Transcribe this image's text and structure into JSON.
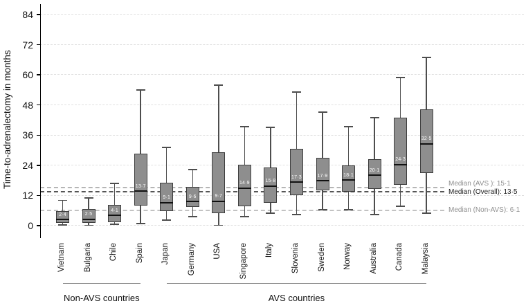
{
  "y_axis": {
    "title": "Time-to-adrenalectomy in months",
    "ticks": [
      0,
      12,
      24,
      36,
      48,
      60,
      72,
      84
    ],
    "range": [
      0,
      88
    ]
  },
  "groups": [
    {
      "label": "Non-AVS countries",
      "start_index": 0,
      "end_index": 3
    },
    {
      "label": "AVS countries",
      "start_index": 4,
      "end_index": 14
    }
  ],
  "reference_lines": [
    {
      "name": "median-avs",
      "value": 15.1,
      "label": "Median (AVS ): 15·1",
      "emphasis": false
    },
    {
      "name": "median-overall",
      "value": 13.5,
      "label": "Median (Overall): 13·5",
      "emphasis": true
    },
    {
      "name": "median-non-avs",
      "value": 6.1,
      "label": "Median (Non-AVS): 6·1",
      "emphasis": false
    }
  ],
  "colors": {
    "box_fill": "#8e8e8e",
    "box_border": "#3d3d3d",
    "median_line": "#111111",
    "whisker": "#4d4d4d",
    "gridline": "#dfdfdf",
    "ref_gray": "#b5b5b5",
    "ref_dark": "#555555",
    "ref_label_gray": "#8f8f8f",
    "ref_label_dark": "#1c1c1c",
    "axis_bottom": "#9c9c9c",
    "median_label_text": "#ffffff"
  },
  "chart_data": {
    "type": "boxplot",
    "title": "",
    "ylabel": "Time-to-adrenalectomy in months",
    "ylim": [
      0,
      88
    ],
    "grid": "horizontal-dashed",
    "categories": [
      "Vietnam",
      "Bulgaria",
      "Chile",
      "Spain",
      "Japan",
      "Germany",
      "USA",
      "Singapore",
      "Italy",
      "Slovenia",
      "Sweden",
      "Norway",
      "Australia",
      "Canada",
      "Malaysia"
    ],
    "series": [
      {
        "name": "Vietnam",
        "whisker_low": 0.3,
        "q1": 1.0,
        "median": 2.4,
        "q3": 5.8,
        "whisker_high": 10.0,
        "median_label": "2·4"
      },
      {
        "name": "Bulgaria",
        "whisker_low": 0.2,
        "q1": 1.0,
        "median": 2.5,
        "q3": 6.6,
        "whisker_high": 11.0,
        "median_label": "2·5"
      },
      {
        "name": "Chile",
        "whisker_low": 0.5,
        "q1": 1.5,
        "median": 4.1,
        "q3": 8.3,
        "whisker_high": 16.8,
        "median_label": "4·1"
      },
      {
        "name": "Spain",
        "whisker_low": 0.8,
        "q1": 8.0,
        "median": 13.7,
        "q3": 28.7,
        "whisker_high": 54.0,
        "median_label": "13·7"
      },
      {
        "name": "Japan",
        "whisker_low": 2.2,
        "q1": 5.8,
        "median": 9.1,
        "q3": 17.1,
        "whisker_high": 31.1,
        "median_label": "9·1"
      },
      {
        "name": "Germany",
        "whisker_low": 3.6,
        "q1": 7.4,
        "median": 9.6,
        "q3": 15.4,
        "whisker_high": 22.3,
        "median_label": "9·6"
      },
      {
        "name": "USA",
        "whisker_low": 0.2,
        "q1": 5.0,
        "median": 9.7,
        "q3": 29.2,
        "whisker_high": 55.9,
        "median_label": "9·7"
      },
      {
        "name": "Singapore",
        "whisker_low": 3.6,
        "q1": 7.7,
        "median": 14.9,
        "q3": 24.2,
        "whisker_high": 39.4,
        "median_label": "14·9"
      },
      {
        "name": "Italy",
        "whisker_low": 5.0,
        "q1": 9.1,
        "median": 15.8,
        "q3": 23.1,
        "whisker_high": 39.1,
        "median_label": "15·8"
      },
      {
        "name": "Slovenia",
        "whisker_low": 4.4,
        "q1": 12.1,
        "median": 17.3,
        "q3": 30.6,
        "whisker_high": 53.2,
        "median_label": "17·3"
      },
      {
        "name": "Sweden",
        "whisker_low": 6.3,
        "q1": 14.0,
        "median": 17.9,
        "q3": 27.0,
        "whisker_high": 45.2,
        "median_label": "17·9"
      },
      {
        "name": "Norway",
        "whisker_low": 6.3,
        "q1": 13.5,
        "median": 18.1,
        "q3": 24.0,
        "whisker_high": 39.4,
        "median_label": "18·1"
      },
      {
        "name": "Australia",
        "whisker_low": 4.4,
        "q1": 14.6,
        "median": 20.1,
        "q3": 26.4,
        "whisker_high": 43.0,
        "median_label": "20·1"
      },
      {
        "name": "Canada",
        "whisker_low": 7.7,
        "q1": 16.3,
        "median": 24.3,
        "q3": 43.0,
        "whisker_high": 58.9,
        "median_label": "24·3"
      },
      {
        "name": "Malaysia",
        "whisker_low": 5.0,
        "q1": 20.9,
        "median": 32.5,
        "q3": 46.3,
        "whisker_high": 66.9,
        "median_label": "32·5"
      }
    ],
    "legend": null,
    "annotations": [
      "Median (AVS ): 15·1",
      "Median (Overall): 13·5",
      "Median (Non-AVS): 6·1"
    ]
  }
}
